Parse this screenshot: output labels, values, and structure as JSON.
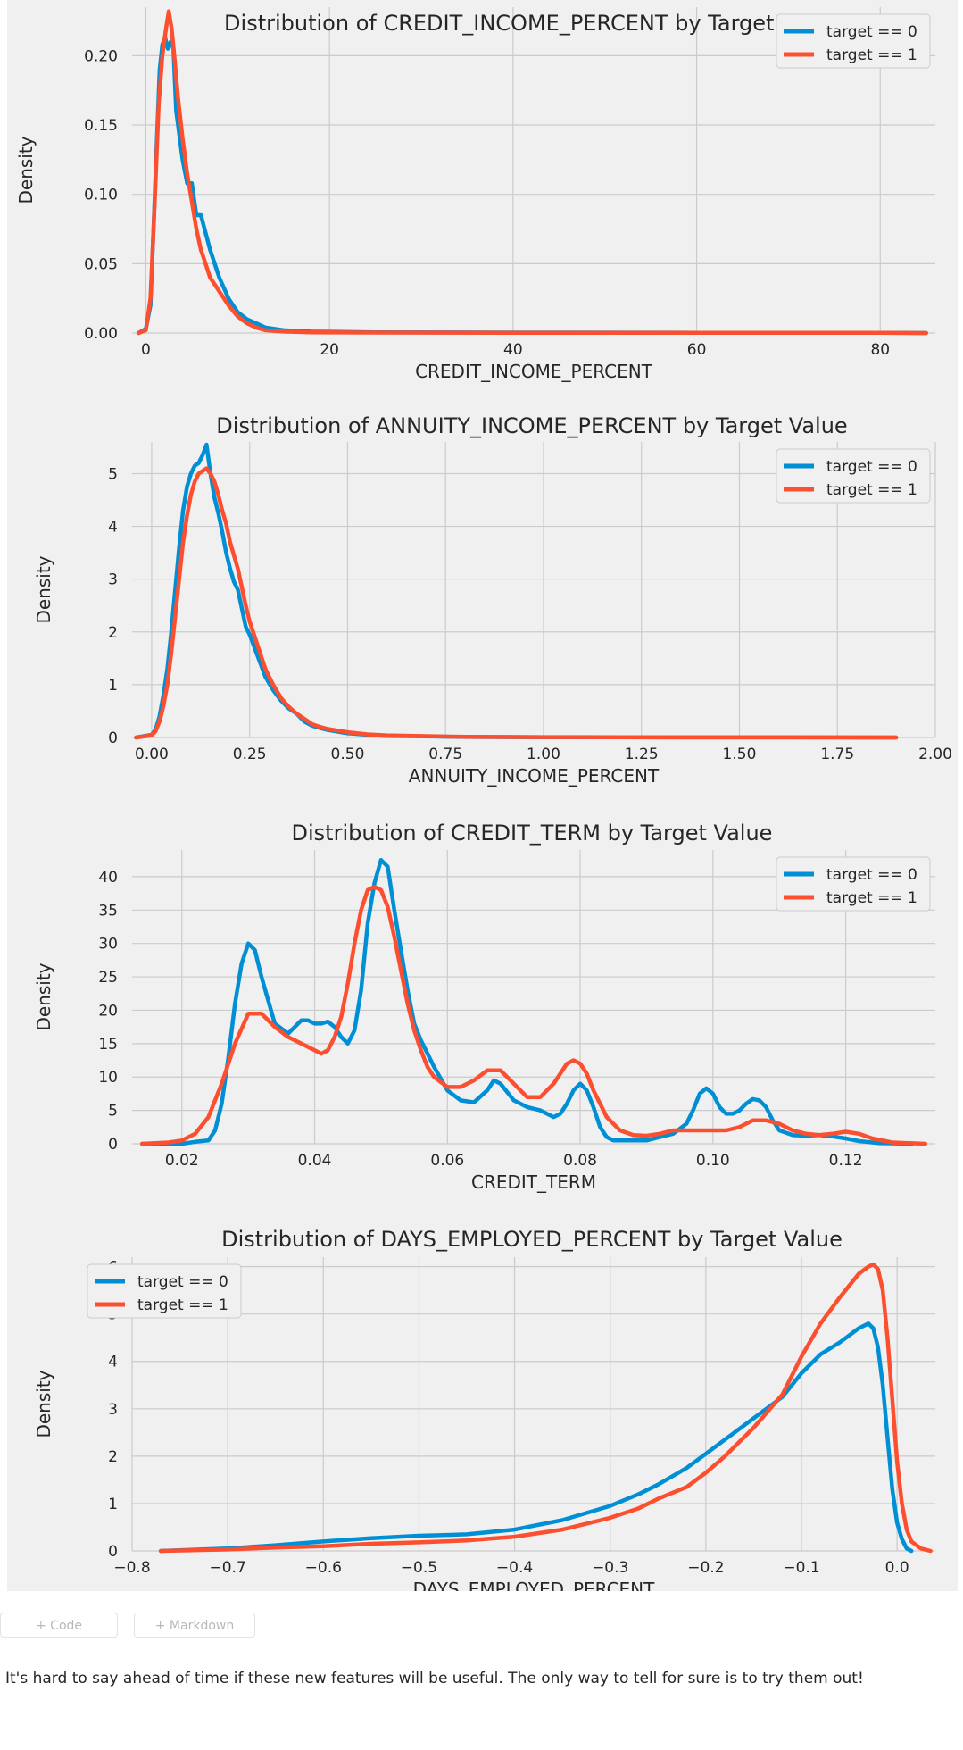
{
  "chart_data": [
    {
      "type": "line",
      "title": "Distribution of CREDIT_INCOME_PERCENT by Target Value",
      "xlabel": "CREDIT_INCOME_PERCENT",
      "ylabel": "Density",
      "xlim": [
        -1.5,
        86
      ],
      "ylim": [
        0,
        0.235
      ],
      "xticks": [
        0,
        20,
        40,
        60,
        80
      ],
      "xtick_labels": [
        "0",
        "20",
        "40",
        "60",
        "80"
      ],
      "yticks": [
        0,
        0.05,
        0.1,
        0.15,
        0.2
      ],
      "ytick_labels": [
        "0.00",
        "0.05",
        "0.10",
        "0.15",
        "0.20"
      ],
      "legend": "top-right",
      "grid": true,
      "series": [
        {
          "name": "target == 0",
          "color": "#008fd5",
          "x": [
            -0.8,
            0,
            0.5,
            0.8,
            1.2,
            1.5,
            1.8,
            2.1,
            2.4,
            2.7,
            3.0,
            3.3,
            3.6,
            4.0,
            4.5,
            5.0,
            5.5,
            6.0,
            7.0,
            8.0,
            9.0,
            10.0,
            11.0,
            12.0,
            13.0,
            15.0,
            18.0,
            25.0,
            40.0,
            60.0,
            80.0,
            85.0
          ],
          "y": [
            0,
            0.003,
            0.02,
            0.07,
            0.14,
            0.19,
            0.208,
            0.213,
            0.205,
            0.21,
            0.205,
            0.16,
            0.145,
            0.125,
            0.108,
            0.108,
            0.085,
            0.085,
            0.06,
            0.04,
            0.025,
            0.015,
            0.01,
            0.007,
            0.004,
            0.002,
            0.001,
            0.0005,
            0.0003,
            0.0002,
            0.0001,
            0
          ]
        },
        {
          "name": "target == 1",
          "color": "#fc4f30",
          "x": [
            -0.8,
            0,
            0.5,
            1.0,
            1.4,
            1.8,
            2.2,
            2.5,
            2.8,
            3.1,
            3.5,
            4.0,
            4.5,
            5.0,
            5.5,
            6.0,
            6.5,
            7.0,
            8.0,
            9.0,
            10.0,
            11.0,
            12.0,
            13.0,
            15.0,
            18.0,
            25.0,
            40.0,
            60.0,
            80.0,
            85.0
          ],
          "y": [
            0,
            0.002,
            0.025,
            0.1,
            0.165,
            0.2,
            0.22,
            0.232,
            0.22,
            0.2,
            0.17,
            0.14,
            0.115,
            0.095,
            0.075,
            0.06,
            0.05,
            0.04,
            0.03,
            0.02,
            0.012,
            0.007,
            0.004,
            0.002,
            0.001,
            0.0005,
            0.0003,
            0.0002,
            0.0001,
            0.0001,
            0
          ]
        }
      ]
    },
    {
      "type": "line",
      "title": "Distribution of ANNUITY_INCOME_PERCENT by Target Value",
      "xlabel": "ANNUITY_INCOME_PERCENT",
      "ylabel": "Density",
      "xlim": [
        -0.05,
        2.0
      ],
      "ylim": [
        0,
        5.6
      ],
      "xticks": [
        0,
        0.25,
        0.5,
        0.75,
        1.0,
        1.25,
        1.5,
        1.75,
        2.0
      ],
      "xtick_labels": [
        "0.00",
        "0.25",
        "0.50",
        "0.75",
        "1.00",
        "1.25",
        "1.50",
        "1.75",
        "2.00"
      ],
      "yticks": [
        0,
        1,
        2,
        3,
        4,
        5
      ],
      "ytick_labels": [
        "0",
        "1",
        "2",
        "3",
        "4",
        "5"
      ],
      "legend": "top-right",
      "grid": true,
      "series": [
        {
          "name": "target == 0",
          "color": "#008fd5",
          "x": [
            -0.04,
            0,
            0.01,
            0.02,
            0.03,
            0.04,
            0.05,
            0.06,
            0.07,
            0.08,
            0.09,
            0.1,
            0.11,
            0.12,
            0.13,
            0.14,
            0.15,
            0.16,
            0.17,
            0.18,
            0.19,
            0.2,
            0.21,
            0.22,
            0.23,
            0.24,
            0.25,
            0.27,
            0.29,
            0.31,
            0.33,
            0.35,
            0.37,
            0.39,
            0.41,
            0.43,
            0.45,
            0.5,
            0.55,
            0.6,
            0.7,
            0.8,
            1.0,
            1.2,
            1.5,
            1.9
          ],
          "y": [
            0,
            0.05,
            0.15,
            0.4,
            0.8,
            1.3,
            2.0,
            2.8,
            3.6,
            4.3,
            4.75,
            5.0,
            5.15,
            5.2,
            5.35,
            5.55,
            5.0,
            4.55,
            4.25,
            3.9,
            3.5,
            3.2,
            2.95,
            2.8,
            2.45,
            2.1,
            1.95,
            1.55,
            1.15,
            0.9,
            0.7,
            0.55,
            0.45,
            0.3,
            0.22,
            0.18,
            0.14,
            0.08,
            0.05,
            0.03,
            0.02,
            0.01,
            0.005,
            0.003,
            0.001,
            0
          ]
        },
        {
          "name": "target == 1",
          "color": "#fc4f30",
          "x": [
            -0.04,
            0,
            0.01,
            0.02,
            0.03,
            0.04,
            0.05,
            0.06,
            0.07,
            0.08,
            0.09,
            0.1,
            0.11,
            0.12,
            0.13,
            0.14,
            0.15,
            0.16,
            0.17,
            0.18,
            0.19,
            0.2,
            0.21,
            0.22,
            0.23,
            0.24,
            0.25,
            0.27,
            0.29,
            0.31,
            0.33,
            0.35,
            0.37,
            0.39,
            0.41,
            0.43,
            0.45,
            0.5,
            0.55,
            0.6,
            0.7,
            0.8,
            1.0,
            1.2,
            1.5,
            1.9
          ],
          "y": [
            0,
            0.04,
            0.12,
            0.3,
            0.6,
            1.0,
            1.6,
            2.3,
            3.0,
            3.7,
            4.2,
            4.6,
            4.85,
            5.0,
            5.05,
            5.1,
            5.0,
            4.85,
            4.6,
            4.3,
            4.05,
            3.7,
            3.45,
            3.2,
            2.85,
            2.5,
            2.2,
            1.75,
            1.3,
            1.0,
            0.75,
            0.58,
            0.45,
            0.35,
            0.25,
            0.2,
            0.16,
            0.1,
            0.06,
            0.04,
            0.025,
            0.012,
            0.006,
            0.003,
            0.001,
            0
          ]
        }
      ]
    },
    {
      "type": "line",
      "title": "Distribution of CREDIT_TERM by Target Value",
      "xlabel": "CREDIT_TERM",
      "ylabel": "Density",
      "xlim": [
        0.0125,
        0.1335
      ],
      "ylim": [
        0,
        44
      ],
      "xticks": [
        0.02,
        0.04,
        0.06,
        0.08,
        0.1,
        0.12
      ],
      "xtick_labels": [
        "0.02",
        "0.04",
        "0.06",
        "0.08",
        "0.10",
        "0.12"
      ],
      "yticks": [
        0,
        5,
        10,
        15,
        20,
        25,
        30,
        35,
        40
      ],
      "ytick_labels": [
        "0",
        "5",
        "10",
        "15",
        "20",
        "25",
        "30",
        "35",
        "40"
      ],
      "legend": "top-right",
      "grid": true,
      "series": [
        {
          "name": "target == 0",
          "color": "#008fd5",
          "x": [
            0.014,
            0.02,
            0.022,
            0.024,
            0.025,
            0.026,
            0.027,
            0.028,
            0.029,
            0.03,
            0.031,
            0.032,
            0.034,
            0.036,
            0.038,
            0.039,
            0.04,
            0.041,
            0.042,
            0.043,
            0.044,
            0.045,
            0.046,
            0.047,
            0.048,
            0.049,
            0.05,
            0.051,
            0.052,
            0.053,
            0.054,
            0.055,
            0.056,
            0.058,
            0.06,
            0.062,
            0.064,
            0.066,
            0.067,
            0.068,
            0.07,
            0.072,
            0.074,
            0.075,
            0.076,
            0.077,
            0.078,
            0.079,
            0.08,
            0.081,
            0.082,
            0.083,
            0.084,
            0.085,
            0.088,
            0.09,
            0.092,
            0.094,
            0.096,
            0.097,
            0.098,
            0.099,
            0.1,
            0.101,
            0.102,
            0.103,
            0.104,
            0.105,
            0.106,
            0.107,
            0.108,
            0.109,
            0.11,
            0.112,
            0.114,
            0.116,
            0.118,
            0.12,
            0.122,
            0.125,
            0.13
          ],
          "y": [
            0,
            0,
            0.3,
            0.5,
            2,
            6,
            13,
            21,
            27,
            30,
            29,
            25,
            18,
            16.5,
            18.5,
            18.5,
            18,
            18,
            18.3,
            17.5,
            16,
            15,
            17,
            23,
            33,
            39,
            42.5,
            41.5,
            35,
            29,
            23,
            18,
            15.5,
            11.5,
            8,
            6.5,
            6.2,
            8,
            9.5,
            9,
            6.5,
            5.5,
            5,
            4.5,
            4,
            4.5,
            6,
            8,
            9,
            8,
            5.5,
            2.5,
            1,
            0.5,
            0.5,
            0.5,
            1,
            1.5,
            3,
            5,
            7.5,
            8.3,
            7.5,
            5.5,
            4.5,
            4.5,
            5,
            6,
            6.7,
            6.5,
            5.5,
            3.5,
            2,
            1.3,
            1.2,
            1.3,
            1.1,
            0.8,
            0.4,
            0.1,
            0
          ]
        },
        {
          "name": "target == 1",
          "color": "#fc4f30",
          "x": [
            0.014,
            0.018,
            0.02,
            0.022,
            0.024,
            0.026,
            0.028,
            0.03,
            0.032,
            0.034,
            0.036,
            0.038,
            0.04,
            0.041,
            0.042,
            0.043,
            0.044,
            0.045,
            0.046,
            0.047,
            0.048,
            0.049,
            0.05,
            0.051,
            0.052,
            0.053,
            0.054,
            0.055,
            0.056,
            0.057,
            0.058,
            0.06,
            0.062,
            0.064,
            0.066,
            0.068,
            0.07,
            0.072,
            0.074,
            0.076,
            0.078,
            0.079,
            0.08,
            0.081,
            0.082,
            0.083,
            0.084,
            0.086,
            0.088,
            0.09,
            0.092,
            0.094,
            0.096,
            0.098,
            0.1,
            0.102,
            0.104,
            0.106,
            0.108,
            0.11,
            0.112,
            0.114,
            0.116,
            0.118,
            0.12,
            0.122,
            0.124,
            0.127,
            0.132
          ],
          "y": [
            0,
            0.2,
            0.5,
            1.5,
            4,
            9,
            15,
            19.5,
            19.5,
            17.5,
            16,
            15,
            14,
            13.5,
            14,
            16,
            19,
            24,
            30,
            35,
            38,
            38.5,
            38,
            35.5,
            31,
            26,
            21,
            17,
            14,
            11.5,
            10,
            8.5,
            8.5,
            9.5,
            11,
            11,
            9,
            7,
            7,
            9,
            12,
            12.5,
            12,
            10.5,
            8,
            6,
            4,
            2,
            1.3,
            1.2,
            1.5,
            2,
            2,
            2,
            2,
            2,
            2.5,
            3.5,
            3.5,
            3,
            2,
            1.5,
            1.3,
            1.5,
            1.8,
            1.5,
            0.8,
            0.2,
            0
          ]
        }
      ]
    },
    {
      "type": "line",
      "title": "Distribution of DAYS_EMPLOYED_PERCENT by Target Value",
      "xlabel": "DAYS_EMPLOYED_PERCENT",
      "ylabel": "Density",
      "xlim": [
        -0.8,
        0.04
      ],
      "ylim": [
        0,
        6.2
      ],
      "xticks": [
        -0.8,
        -0.7,
        -0.6,
        -0.5,
        -0.4,
        -0.3,
        -0.2,
        -0.1,
        0.0
      ],
      "xtick_labels": [
        "−0.8",
        "−0.7",
        "−0.6",
        "−0.5",
        "−0.4",
        "−0.3",
        "−0.2",
        "−0.1",
        "0.0"
      ],
      "yticks": [
        0,
        1,
        2,
        3,
        4,
        5,
        6
      ],
      "ytick_labels": [
        "0",
        "1",
        "2",
        "3",
        "4",
        "5",
        "6"
      ],
      "legend": "top-left",
      "grid": true,
      "series": [
        {
          "name": "target == 0",
          "color": "#008fd5",
          "x": [
            -0.77,
            -0.7,
            -0.65,
            -0.6,
            -0.55,
            -0.5,
            -0.45,
            -0.4,
            -0.35,
            -0.3,
            -0.27,
            -0.25,
            -0.22,
            -0.2,
            -0.18,
            -0.15,
            -0.12,
            -0.1,
            -0.08,
            -0.06,
            -0.05,
            -0.04,
            -0.03,
            -0.025,
            -0.02,
            -0.015,
            -0.01,
            -0.005,
            0.0,
            0.005,
            0.01,
            0.015
          ],
          "y": [
            0,
            0.05,
            0.12,
            0.2,
            0.27,
            0.32,
            0.35,
            0.45,
            0.65,
            0.95,
            1.2,
            1.4,
            1.75,
            2.05,
            2.35,
            2.8,
            3.25,
            3.75,
            4.15,
            4.4,
            4.55,
            4.7,
            4.8,
            4.7,
            4.3,
            3.5,
            2.4,
            1.3,
            0.6,
            0.25,
            0.05,
            0
          ]
        },
        {
          "name": "target == 1",
          "color": "#fc4f30",
          "x": [
            -0.77,
            -0.7,
            -0.65,
            -0.6,
            -0.55,
            -0.5,
            -0.45,
            -0.4,
            -0.35,
            -0.3,
            -0.27,
            -0.25,
            -0.22,
            -0.2,
            -0.18,
            -0.15,
            -0.12,
            -0.1,
            -0.08,
            -0.06,
            -0.05,
            -0.04,
            -0.03,
            -0.025,
            -0.02,
            -0.015,
            -0.01,
            -0.005,
            0.0,
            0.005,
            0.01,
            0.015,
            0.025,
            0.035
          ],
          "y": [
            0,
            0.03,
            0.07,
            0.1,
            0.15,
            0.18,
            0.22,
            0.3,
            0.45,
            0.7,
            0.9,
            1.1,
            1.35,
            1.65,
            2.0,
            2.6,
            3.3,
            4.1,
            4.8,
            5.35,
            5.6,
            5.85,
            6.0,
            6.05,
            5.95,
            5.5,
            4.5,
            3.2,
            1.9,
            1.0,
            0.45,
            0.2,
            0.05,
            0
          ]
        }
      ]
    }
  ],
  "cell_toolbar": {
    "add_code_label": "+ Code",
    "add_markdown_label": "+ Markdown"
  },
  "markdown_text": "It's hard to say ahead of time if these new features will be useful. The only way to tell for sure is to try them out!"
}
